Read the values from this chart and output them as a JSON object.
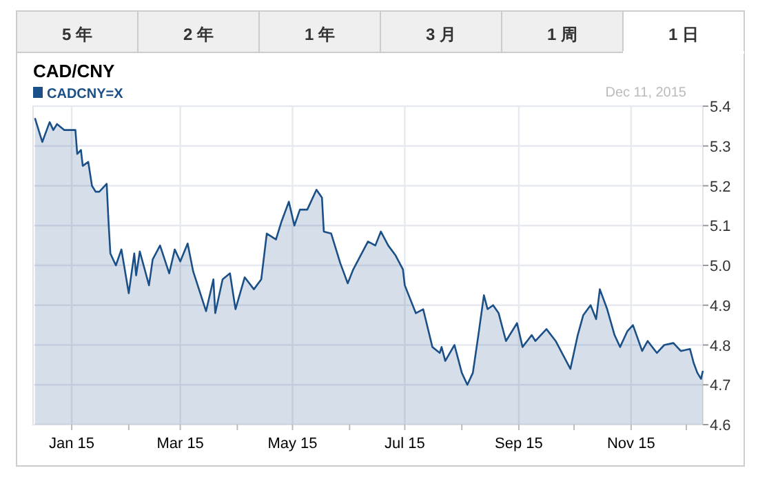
{
  "chart_data": {
    "type": "area",
    "title": "CAD/CNY",
    "annotations": [
      "5 年",
      "2 年",
      "1 年",
      "3 月",
      "1 周",
      "1 日",
      "Dec 11, 2015"
    ],
    "x": [
      "2014-12-26",
      "2014-12-30",
      "2015-01-03",
      "2015-01-05",
      "2015-01-07",
      "2015-01-11",
      "2015-01-17",
      "2015-01-18",
      "2015-01-20",
      "2015-01-21",
      "2015-01-24",
      "2015-01-26",
      "2015-01-28",
      "2015-01-30",
      "2015-02-03",
      "2015-02-04",
      "2015-02-05",
      "2015-02-08",
      "2015-02-11",
      "2015-02-15",
      "2015-02-18",
      "2015-02-19",
      "2015-02-21",
      "2015-02-26",
      "2015-02-28",
      "2015-03-04",
      "2015-03-09",
      "2015-03-12",
      "2015-03-15",
      "2015-03-19",
      "2015-03-22",
      "2015-03-29",
      "2015-04-02",
      "2015-04-03",
      "2015-04-07",
      "2015-04-11",
      "2015-04-14",
      "2015-04-19",
      "2015-04-24",
      "2015-04-28",
      "2015-05-01",
      "2015-05-06",
      "2015-05-09",
      "2015-05-13",
      "2015-05-16",
      "2015-05-19",
      "2015-05-23",
      "2015-05-28",
      "2015-05-31",
      "2015-06-01",
      "2015-06-05",
      "2015-06-10",
      "2015-06-14",
      "2015-06-17",
      "2015-06-25",
      "2015-06-29",
      "2015-07-02",
      "2015-07-06",
      "2015-07-10",
      "2015-07-14",
      "2015-07-15",
      "2015-07-21",
      "2015-07-25",
      "2015-07-30",
      "2015-08-03",
      "2015-08-04",
      "2015-08-06",
      "2015-08-11",
      "2015-08-15",
      "2015-08-18",
      "2015-08-21",
      "2015-08-24",
      "2015-08-27",
      "2015-08-29",
      "2015-09-01",
      "2015-09-04",
      "2015-09-08",
      "2015-09-14",
      "2015-09-17",
      "2015-09-22",
      "2015-09-24",
      "2015-09-30",
      "2015-10-05",
      "2015-10-13",
      "2015-10-17",
      "2015-10-20",
      "2015-10-24",
      "2015-10-27",
      "2015-10-29",
      "2015-11-02",
      "2015-11-06",
      "2015-11-09",
      "2015-11-13",
      "2015-11-16",
      "2015-11-21",
      "2015-11-24",
      "2015-11-29",
      "2015-12-03",
      "2015-12-08",
      "2015-12-12",
      "2015-12-17",
      "2015-12-19",
      "2015-12-21",
      "2015-12-23",
      "2015-12-24"
    ],
    "series": [
      {
        "name": "CADCNY=X",
        "color": "#1a4f87",
        "values": [
          5.37,
          5.31,
          5.36,
          5.34,
          5.355,
          5.34,
          5.34,
          5.28,
          5.29,
          5.25,
          5.26,
          5.2,
          5.185,
          5.185,
          5.205,
          5.11,
          5.03,
          5.0,
          5.04,
          4.93,
          5.03,
          4.975,
          5.035,
          4.95,
          5.015,
          5.05,
          4.98,
          5.04,
          5.01,
          5.055,
          4.985,
          4.885,
          4.965,
          4.88,
          4.965,
          4.98,
          4.89,
          4.97,
          4.94,
          4.965,
          5.08,
          5.065,
          5.11,
          5.16,
          5.1,
          5.14,
          5.14,
          5.19,
          5.17,
          5.085,
          5.08,
          5.005,
          4.955,
          4.99,
          5.06,
          5.05,
          5.085,
          5.05,
          5.025,
          4.99,
          4.95,
          4.88,
          4.89,
          4.795,
          4.78,
          4.795,
          4.76,
          4.8,
          4.73,
          4.7,
          4.73,
          4.825,
          4.925,
          4.89,
          4.9,
          4.88,
          4.81,
          4.855,
          4.795,
          4.825,
          4.81,
          4.84,
          4.81,
          4.74,
          4.825,
          4.875,
          4.9,
          4.865,
          4.94,
          4.89,
          4.825,
          4.795,
          4.835,
          4.85,
          4.785,
          4.81,
          4.78,
          4.8,
          4.805,
          4.785,
          4.79,
          4.755,
          4.73,
          4.715,
          4.735
        ]
      }
    ],
    "xlim": [
      "2014-12-25",
      "2015-12-24"
    ],
    "xticks": [
      {
        "value": "2015-01-15",
        "label": "Jan 15"
      },
      {
        "value": "2015-02-15",
        "label": null
      },
      {
        "value": "2015-03-15",
        "label": "Mar 15"
      },
      {
        "value": "2015-04-15",
        "label": null
      },
      {
        "value": "2015-05-15",
        "label": "May 15"
      },
      {
        "value": "2015-06-15",
        "label": null
      },
      {
        "value": "2015-07-15",
        "label": "Jul 15"
      },
      {
        "value": "2015-08-15",
        "label": null
      },
      {
        "value": "2015-09-15",
        "label": "Sep 15"
      },
      {
        "value": "2015-10-15",
        "label": null
      },
      {
        "value": "2015-11-15",
        "label": "Nov 15"
      },
      {
        "value": "2015-12-15",
        "label": null
      }
    ],
    "ylim": [
      4.6,
      5.4
    ],
    "yticks": [
      {
        "value": 4.6,
        "label": "4.6"
      },
      {
        "value": 4.7,
        "label": "4.7"
      },
      {
        "value": 4.8,
        "label": "4.8"
      },
      {
        "value": 4.9,
        "label": "4.9"
      },
      {
        "value": 5,
        "label": "5.0"
      },
      {
        "value": 5.1,
        "label": "5.1"
      },
      {
        "value": 5.2,
        "label": "5.2"
      },
      {
        "value": 5.3,
        "label": "5.3"
      },
      {
        "value": 5.4,
        "label": "5.4"
      }
    ],
    "grid": true,
    "legend": "top left"
  }
}
